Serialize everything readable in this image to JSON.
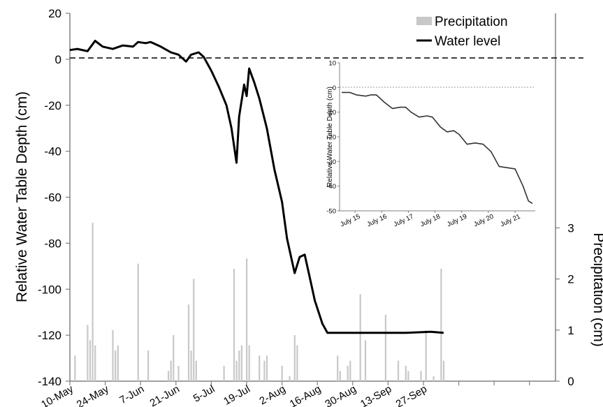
{
  "chart_data": [
    {
      "type": "line",
      "title": "",
      "ylabel": "Relative Water Table Depth (cm)",
      "y2label": "Precipitation (cm)",
      "xlabel": "",
      "ylim": [
        -140,
        20
      ],
      "y2lim": [
        0,
        7.2
      ],
      "x_tick_labels": [
        "10-May",
        "24-May",
        "7-Jun",
        "21-Jun",
        "5-Jul",
        "19-Jul",
        "2-Aug",
        "16-Aug",
        "30-Aug",
        "13-Sep",
        "27-Sep"
      ],
      "y_tick_labels": [
        "20",
        "0",
        "-20",
        "-40",
        "-60",
        "-80",
        "-100",
        "-120",
        "-140"
      ],
      "y2_tick_labels": [
        "0",
        "1",
        "2",
        "3"
      ],
      "reference_line": {
        "y": 0,
        "style": "dashed"
      },
      "legend": {
        "position": "top-right",
        "entries": [
          "Precipitation",
          "Water level"
        ]
      },
      "series": [
        {
          "name": "Water level",
          "kind": "line",
          "color": "#000000",
          "points": [
            [
              "2012-05-10",
              4
            ],
            [
              "2012-05-13",
              4.5
            ],
            [
              "2012-05-17",
              3.5
            ],
            [
              "2012-05-20",
              8
            ],
            [
              "2012-05-23",
              5.5
            ],
            [
              "2012-05-27",
              4.5
            ],
            [
              "2012-05-31",
              6
            ],
            [
              "2012-06-04",
              5.5
            ],
            [
              "2012-06-06",
              7.5
            ],
            [
              "2012-06-09",
              7
            ],
            [
              "2012-06-11",
              7.5
            ],
            [
              "2012-06-15",
              5.5
            ],
            [
              "2012-06-19",
              3
            ],
            [
              "2012-06-22",
              2
            ],
            [
              "2012-06-25",
              -1
            ],
            [
              "2012-06-27",
              2
            ],
            [
              "2012-06-30",
              3
            ],
            [
              "2012-07-02",
              1
            ],
            [
              "2012-07-05",
              -5
            ],
            [
              "2012-07-08",
              -12
            ],
            [
              "2012-07-11",
              -20
            ],
            [
              "2012-07-13",
              -30
            ],
            [
              "2012-07-15",
              -45
            ],
            [
              "2012-07-16",
              -25
            ],
            [
              "2012-07-17",
              -18
            ],
            [
              "2012-07-18",
              -11
            ],
            [
              "2012-07-19",
              -16
            ],
            [
              "2012-07-20",
              -4
            ],
            [
              "2012-07-22",
              -10
            ],
            [
              "2012-07-24",
              -17
            ],
            [
              "2012-07-27",
              -30
            ],
            [
              "2012-07-30",
              -48
            ],
            [
              "2012-08-02",
              -62
            ],
            [
              "2012-08-04",
              -78
            ],
            [
              "2012-08-07",
              -93
            ],
            [
              "2012-08-09",
              -86
            ],
            [
              "2012-08-11",
              -85
            ],
            [
              "2012-08-13",
              -95
            ],
            [
              "2012-08-15",
              -105
            ],
            [
              "2012-08-18",
              -115
            ],
            [
              "2012-08-20",
              -119
            ],
            [
              "2012-08-23",
              -119
            ],
            [
              "2012-09-01",
              -119
            ],
            [
              "2012-09-10",
              -119
            ],
            [
              "2012-09-20",
              -119
            ],
            [
              "2012-09-30",
              -118.5
            ],
            [
              "2012-10-05",
              -119
            ]
          ]
        },
        {
          "name": "Precipitation",
          "kind": "bar",
          "axis": "y2",
          "color": "#c8c8c8",
          "points": [
            [
              "2012-05-12",
              0.5
            ],
            [
              "2012-05-17",
              1.1
            ],
            [
              "2012-05-18",
              0.8
            ],
            [
              "2012-05-19",
              3.1
            ],
            [
              "2012-05-20",
              0.7
            ],
            [
              "2012-05-27",
              1.0
            ],
            [
              "2012-05-28",
              0.6
            ],
            [
              "2012-05-29",
              0.7
            ],
            [
              "2012-06-06",
              2.3
            ],
            [
              "2012-06-10",
              0.6
            ],
            [
              "2012-06-18",
              0.2
            ],
            [
              "2012-06-19",
              0.4
            ],
            [
              "2012-06-20",
              0.9
            ],
            [
              "2012-06-22",
              0.3
            ],
            [
              "2012-06-26",
              1.5
            ],
            [
              "2012-06-27",
              0.6
            ],
            [
              "2012-06-28",
              2.0
            ],
            [
              "2012-06-29",
              0.4
            ],
            [
              "2012-07-10",
              0.3
            ],
            [
              "2012-07-14",
              2.2
            ],
            [
              "2012-07-15",
              0.4
            ],
            [
              "2012-07-16",
              0.6
            ],
            [
              "2012-07-17",
              0.7
            ],
            [
              "2012-07-19",
              2.4
            ],
            [
              "2012-07-20",
              0.7
            ],
            [
              "2012-07-24",
              0.5
            ],
            [
              "2012-07-26",
              0.4
            ],
            [
              "2012-07-27",
              0.5
            ],
            [
              "2012-08-02",
              0.3
            ],
            [
              "2012-08-05",
              0.1
            ],
            [
              "2012-08-07",
              0.9
            ],
            [
              "2012-08-08",
              0.7
            ],
            [
              "2012-08-24",
              0.5
            ],
            [
              "2012-08-25",
              0.2
            ],
            [
              "2012-08-28",
              0.3
            ],
            [
              "2012-08-29",
              0.4
            ],
            [
              "2012-09-02",
              1.7
            ],
            [
              "2012-09-04",
              0.8
            ],
            [
              "2012-09-12",
              1.3
            ],
            [
              "2012-09-17",
              0.4
            ],
            [
              "2012-09-20",
              0.3
            ],
            [
              "2012-09-21",
              0.2
            ],
            [
              "2012-09-26",
              0.2
            ],
            [
              "2012-09-28",
              1.0
            ],
            [
              "2012-10-01",
              0.1
            ],
            [
              "2012-10-04",
              2.2
            ],
            [
              "2012-10-05",
              0.4
            ]
          ]
        }
      ]
    },
    {
      "type": "line",
      "title": "",
      "inset": true,
      "ylabel": "Relative Water Table Depth (cm)",
      "xlabel": "",
      "ylim": [
        -50,
        10
      ],
      "x_tick_labels": [
        "July 15",
        "July 16",
        "July 17",
        "July 18",
        "July 19",
        "July 20",
        "July 21"
      ],
      "y_tick_labels": [
        "10",
        "0",
        "-10",
        "-20",
        "-30",
        "-40",
        "-50"
      ],
      "reference_line": {
        "y": 0,
        "style": "dotted"
      },
      "series": [
        {
          "name": "",
          "color": "#333333",
          "points": [
            [
              0,
              -2
            ],
            [
              0.3,
              -2
            ],
            [
              0.55,
              -3
            ],
            [
              0.9,
              -3.5
            ],
            [
              1.1,
              -3
            ],
            [
              1.3,
              -3
            ],
            [
              1.6,
              -6
            ],
            [
              1.9,
              -8.5
            ],
            [
              2.2,
              -8
            ],
            [
              2.4,
              -8
            ],
            [
              2.6,
              -10
            ],
            [
              2.9,
              -12
            ],
            [
              3.2,
              -11.5
            ],
            [
              3.4,
              -12
            ],
            [
              3.7,
              -16
            ],
            [
              3.95,
              -18
            ],
            [
              4.2,
              -17.5
            ],
            [
              4.4,
              -19
            ],
            [
              4.7,
              -23
            ],
            [
              5.0,
              -22.5
            ],
            [
              5.3,
              -23
            ],
            [
              5.6,
              -26
            ],
            [
              5.9,
              -32
            ],
            [
              6.2,
              -32.5
            ],
            [
              6.5,
              -33
            ],
            [
              6.8,
              -40
            ],
            [
              7.0,
              -46
            ],
            [
              7.15,
              -47
            ]
          ]
        }
      ]
    }
  ],
  "colors": {
    "line": "#000000",
    "precipitation": "#c8c8c8",
    "axis": "#808080"
  }
}
